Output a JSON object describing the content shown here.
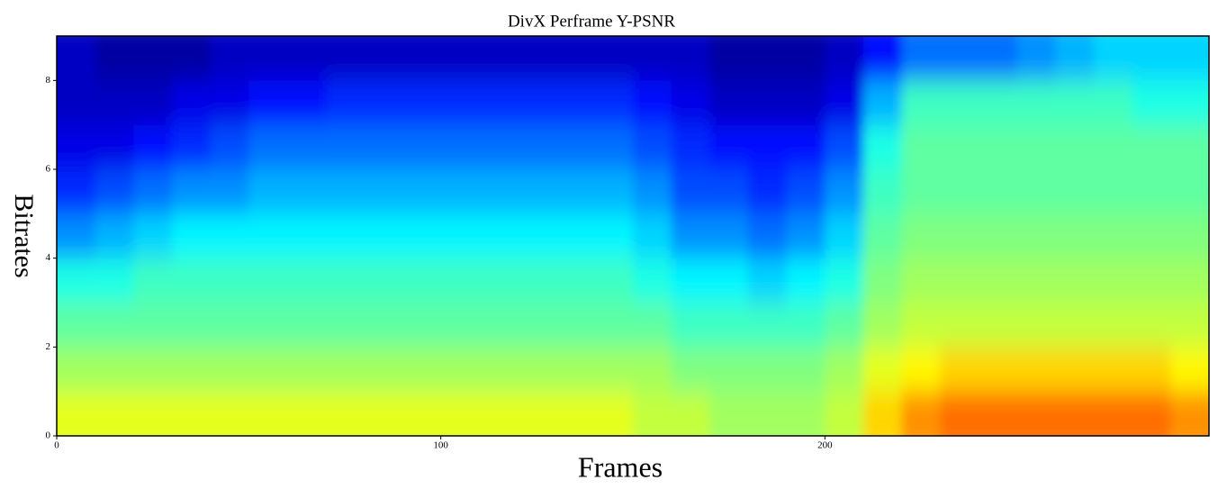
{
  "chart_data": {
    "type": "heatmap",
    "title": "DivX Perframe Y-PSNR",
    "x_label": "Frames",
    "y_label": "Bitrates",
    "colormap": "jet",
    "zlim": [
      20,
      50
    ],
    "xbins": [
      0,
      10,
      20,
      30,
      40,
      50,
      60,
      70,
      80,
      90,
      100,
      110,
      120,
      130,
      140,
      150,
      160,
      170,
      180,
      190,
      200,
      210,
      220,
      230,
      240,
      250,
      260,
      270,
      280,
      290,
      300
    ],
    "ybins": [
      0,
      1,
      2,
      3,
      4,
      5,
      6,
      7,
      8,
      9
    ],
    "xlim": [
      0,
      300
    ],
    "ylim": [
      0,
      9
    ],
    "xticks": [
      0,
      100,
      200
    ],
    "yticks": [
      0,
      2,
      4,
      6,
      8
    ],
    "z": [
      [
        38,
        38,
        38,
        38,
        38,
        38,
        38,
        38,
        38,
        38,
        38,
        38,
        38,
        38,
        38,
        37,
        37,
        36,
        36,
        36,
        37,
        40,
        42,
        43,
        43,
        43,
        43,
        43,
        43,
        42
      ],
      [
        36,
        36,
        36,
        36,
        36,
        36,
        36,
        36,
        36,
        36,
        36,
        36,
        36,
        36,
        36,
        36,
        35,
        35,
        35,
        35,
        36,
        38,
        39,
        40,
        40,
        40,
        40,
        40,
        40,
        39
      ],
      [
        34,
        34,
        34,
        34,
        34,
        34,
        34,
        34,
        34,
        34,
        34,
        34,
        34,
        34,
        34,
        34,
        33,
        33,
        33,
        33,
        34,
        36,
        37,
        37,
        37,
        37,
        37,
        37,
        37,
        37
      ],
      [
        32,
        32,
        33,
        33,
        33,
        33,
        33,
        33,
        33,
        33,
        33,
        33,
        33,
        33,
        33,
        32,
        31,
        31,
        30,
        31,
        32,
        35,
        36,
        36,
        36,
        36,
        36,
        36,
        36,
        36
      ],
      [
        28,
        29,
        30,
        31,
        31,
        31,
        31,
        31,
        31,
        31,
        31,
        31,
        31,
        31,
        31,
        30,
        28,
        28,
        27,
        28,
        30,
        34,
        35,
        35,
        35,
        35,
        35,
        35,
        35,
        35
      ],
      [
        25,
        26,
        27,
        28,
        28,
        29,
        29,
        29,
        29,
        29,
        29,
        29,
        29,
        29,
        29,
        28,
        26,
        26,
        25,
        26,
        28,
        33,
        34,
        34,
        34,
        34,
        34,
        34,
        34,
        34
      ],
      [
        23,
        23,
        24,
        25,
        26,
        27,
        27,
        27,
        27,
        27,
        27,
        27,
        27,
        27,
        27,
        26,
        25,
        24,
        24,
        24,
        26,
        32,
        34,
        34,
        34,
        34,
        34,
        34,
        34,
        34
      ],
      [
        22,
        22,
        22,
        23,
        23,
        24,
        24,
        25,
        25,
        25,
        25,
        25,
        25,
        25,
        25,
        24,
        23,
        22,
        22,
        22,
        23,
        29,
        33,
        33,
        33,
        33,
        33,
        33,
        32,
        32
      ],
      [
        22,
        21,
        21,
        21,
        22,
        22,
        22,
        22,
        22,
        22,
        22,
        22,
        22,
        22,
        22,
        22,
        22,
        21,
        21,
        21,
        22,
        24,
        27,
        27,
        27,
        28,
        29,
        30,
        30,
        30
      ]
    ]
  }
}
